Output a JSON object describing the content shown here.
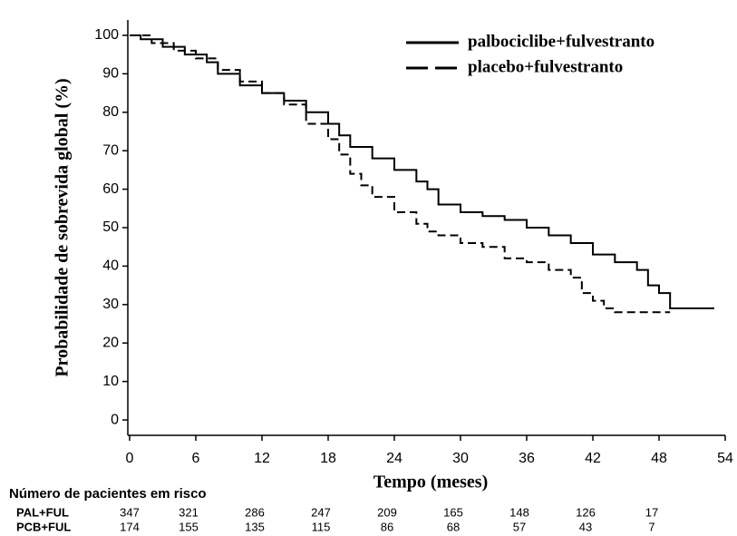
{
  "chart_data": {
    "type": "line",
    "step": true,
    "ylabel": "Probabilidade de sobrevida global (%)",
    "xlabel": "Tempo (meses)",
    "xlim": [
      0,
      54
    ],
    "xticks": [
      0,
      6,
      12,
      18,
      24,
      30,
      36,
      42,
      48,
      54
    ],
    "ylim": [
      -4,
      104
    ],
    "yticks": [
      0,
      10,
      20,
      30,
      40,
      50,
      60,
      70,
      80,
      90,
      100
    ],
    "legend": "upper right",
    "series": [
      {
        "name": "palbociclibe+fulvestranto",
        "color": "#000000",
        "linestyle": "solid",
        "x": [
          0,
          1,
          3,
          5,
          7,
          8,
          10,
          12,
          14,
          16,
          18,
          19,
          20,
          22,
          24,
          26,
          27,
          28,
          30,
          32,
          34,
          36,
          38,
          40,
          42,
          44,
          46,
          47,
          48,
          49,
          53
        ],
        "values": [
          100,
          99,
          97,
          95,
          93,
          90,
          87,
          85,
          83,
          80,
          77,
          74,
          71,
          68,
          65,
          62,
          60,
          56,
          54,
          53,
          52,
          50,
          48,
          46,
          43,
          41,
          39,
          35,
          33,
          29,
          29
        ]
      },
      {
        "name": "placebo+fulvestranto",
        "color": "#000000",
        "linestyle": "dashed",
        "x": [
          0,
          2,
          4,
          6,
          8,
          10,
          12,
          14,
          16,
          18,
          19,
          20,
          21,
          22,
          24,
          26,
          27,
          28,
          30,
          32,
          34,
          36,
          38,
          40,
          41,
          42,
          43,
          44,
          49
        ],
        "values": [
          100,
          98,
          96,
          94,
          91,
          88,
          85,
          82,
          77,
          73,
          69,
          64,
          61,
          58,
          54,
          51,
          49,
          48,
          46,
          45,
          42,
          41,
          39,
          37,
          33,
          31,
          29,
          28,
          28
        ]
      }
    ],
    "at_risk": {
      "title": "Número de pacientes em risco",
      "rows": [
        {
          "label": "PAL+FUL",
          "values": [
            347,
            321,
            286,
            247,
            209,
            165,
            148,
            126,
            17
          ]
        },
        {
          "label": "PCB+FUL",
          "values": [
            174,
            155,
            135,
            115,
            86,
            68,
            57,
            43,
            7
          ]
        }
      ]
    }
  }
}
